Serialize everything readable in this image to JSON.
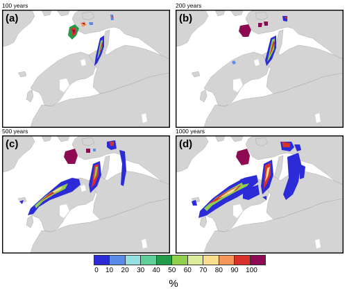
{
  "panels": [
    {
      "period": "100 years",
      "letter": "(a)"
    },
    {
      "period": "200 years",
      "letter": "(b)"
    },
    {
      "period": "500 years",
      "letter": "(c)"
    },
    {
      "period": "1000 years",
      "letter": "(d)"
    }
  ],
  "land_color": "#d4d4d4",
  "ocean_color": "#ffffff",
  "legend": {
    "unit": "%",
    "ticks": [
      "0",
      "10",
      "20",
      "30",
      "40",
      "50",
      "60",
      "70",
      "80",
      "90",
      "100"
    ],
    "colors": [
      "#2b2bd8",
      "#5b8be8",
      "#96dfe0",
      "#5fcf9a",
      "#229b4a",
      "#8ecf4e",
      "#dcec9b",
      "#f7dd8d",
      "#f4955a",
      "#d8302a",
      "#8e0a52"
    ]
  }
}
